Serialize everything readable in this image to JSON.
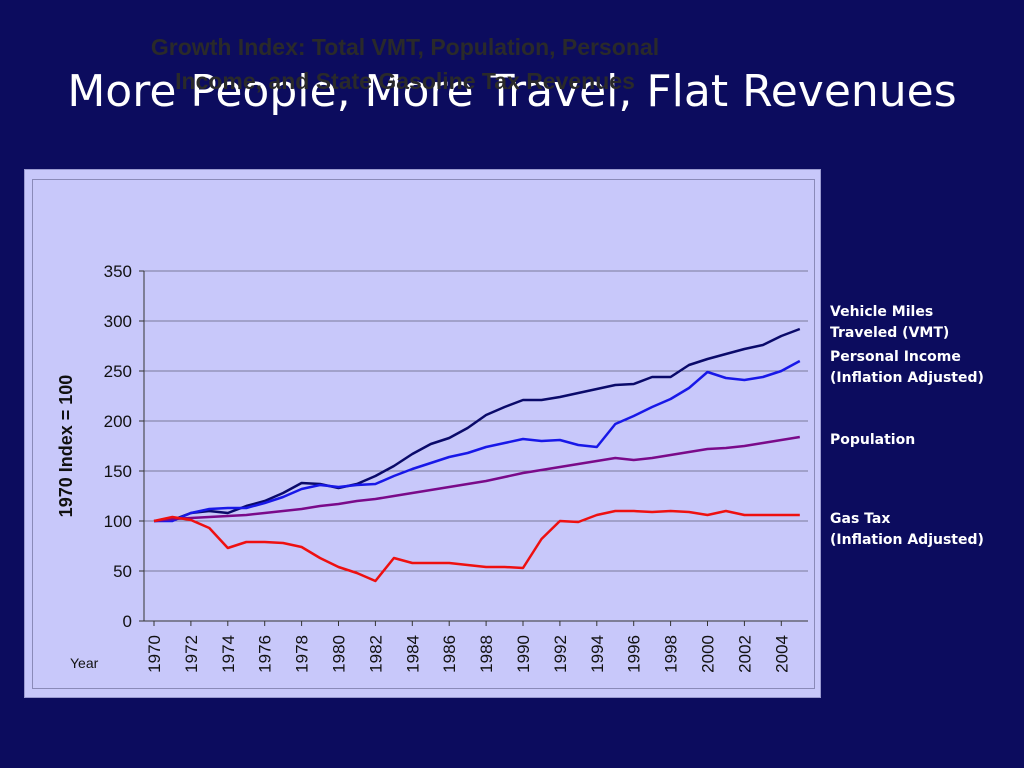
{
  "slide": {
    "title": "More People, More Travel, Flat Revenues"
  },
  "colors": {
    "background": "#0c0c5e",
    "plot_area": "#c8c8fa"
  },
  "chart_data": {
    "type": "line",
    "title": "Growth Index: Total VMT, Population, Personal Income, and State Gasoline Tax Revenues",
    "title_lines": [
      "Growth Index: Total VMT, Population, Personal",
      "Income, and State Gasoline Tax Revenues"
    ],
    "xlabel": "Year",
    "ylabel": "1970 Index = 100",
    "ylim": [
      0,
      350
    ],
    "yticks": [
      0,
      50,
      100,
      150,
      200,
      250,
      300,
      350
    ],
    "xtick_labels": [
      "1970",
      "1972",
      "1974",
      "1976",
      "1978",
      "1980",
      "1982",
      "1984",
      "1986",
      "1988",
      "1990",
      "1992",
      "1994",
      "1996",
      "1998",
      "2000",
      "2002",
      "2004"
    ],
    "grid": true,
    "legend_placement": "right",
    "x": [
      1970,
      1971,
      1972,
      1973,
      1974,
      1975,
      1976,
      1977,
      1978,
      1979,
      1980,
      1981,
      1982,
      1983,
      1984,
      1985,
      1986,
      1987,
      1988,
      1989,
      1990,
      1991,
      1992,
      1993,
      1994,
      1995,
      1996,
      1997,
      1998,
      1999,
      2000,
      2001,
      2002,
      2003,
      2004,
      2005
    ],
    "series": [
      {
        "name": "Vehicle Miles Traveled (VMT)",
        "legend_lines": [
          "Vehicle Miles",
          "Traveled (VMT)"
        ],
        "color": "#0a0a6a",
        "values": [
          100,
          101,
          108,
          110,
          108,
          115,
          120,
          128,
          138,
          137,
          133,
          137,
          145,
          155,
          167,
          177,
          183,
          193,
          206,
          214,
          221,
          221,
          224,
          228,
          232,
          236,
          237,
          244,
          244,
          256,
          262,
          267,
          272,
          276,
          285,
          292
        ]
      },
      {
        "name": "Personal Income (Inflation Adjusted)",
        "legend_lines": [
          "Personal Income",
          "(Inflation Adjusted)"
        ],
        "color": "#1818e8",
        "values": [
          100,
          100,
          108,
          112,
          113,
          113,
          118,
          124,
          132,
          136,
          134,
          136,
          137,
          145,
          152,
          158,
          164,
          168,
          174,
          178,
          182,
          180,
          181,
          176,
          174,
          197,
          205,
          214,
          222,
          233,
          249,
          243,
          241,
          244,
          250,
          260
        ]
      },
      {
        "name": "Population",
        "legend_lines": [
          "Population"
        ],
        "color": "#7a0a8a",
        "values": [
          100,
          102,
          103,
          104,
          105,
          106,
          108,
          110,
          112,
          115,
          117,
          120,
          122,
          125,
          128,
          131,
          134,
          137,
          140,
          144,
          148,
          151,
          154,
          157,
          160,
          163,
          161,
          163,
          166,
          169,
          172,
          173,
          175,
          178,
          181,
          184
        ]
      },
      {
        "name": "Gas Tax (Inflation Adjusted)",
        "legend_lines": [
          "Gas Tax",
          "(Inflation Adjusted)"
        ],
        "color": "#ee1010",
        "values": [
          100,
          104,
          101,
          93,
          73,
          79,
          79,
          78,
          74,
          63,
          54,
          48,
          40,
          63,
          58,
          58,
          58,
          56,
          54,
          54,
          53,
          82,
          100,
          99,
          106,
          110,
          110,
          109,
          110,
          109,
          106,
          110,
          106,
          106,
          106,
          106
        ]
      }
    ]
  }
}
